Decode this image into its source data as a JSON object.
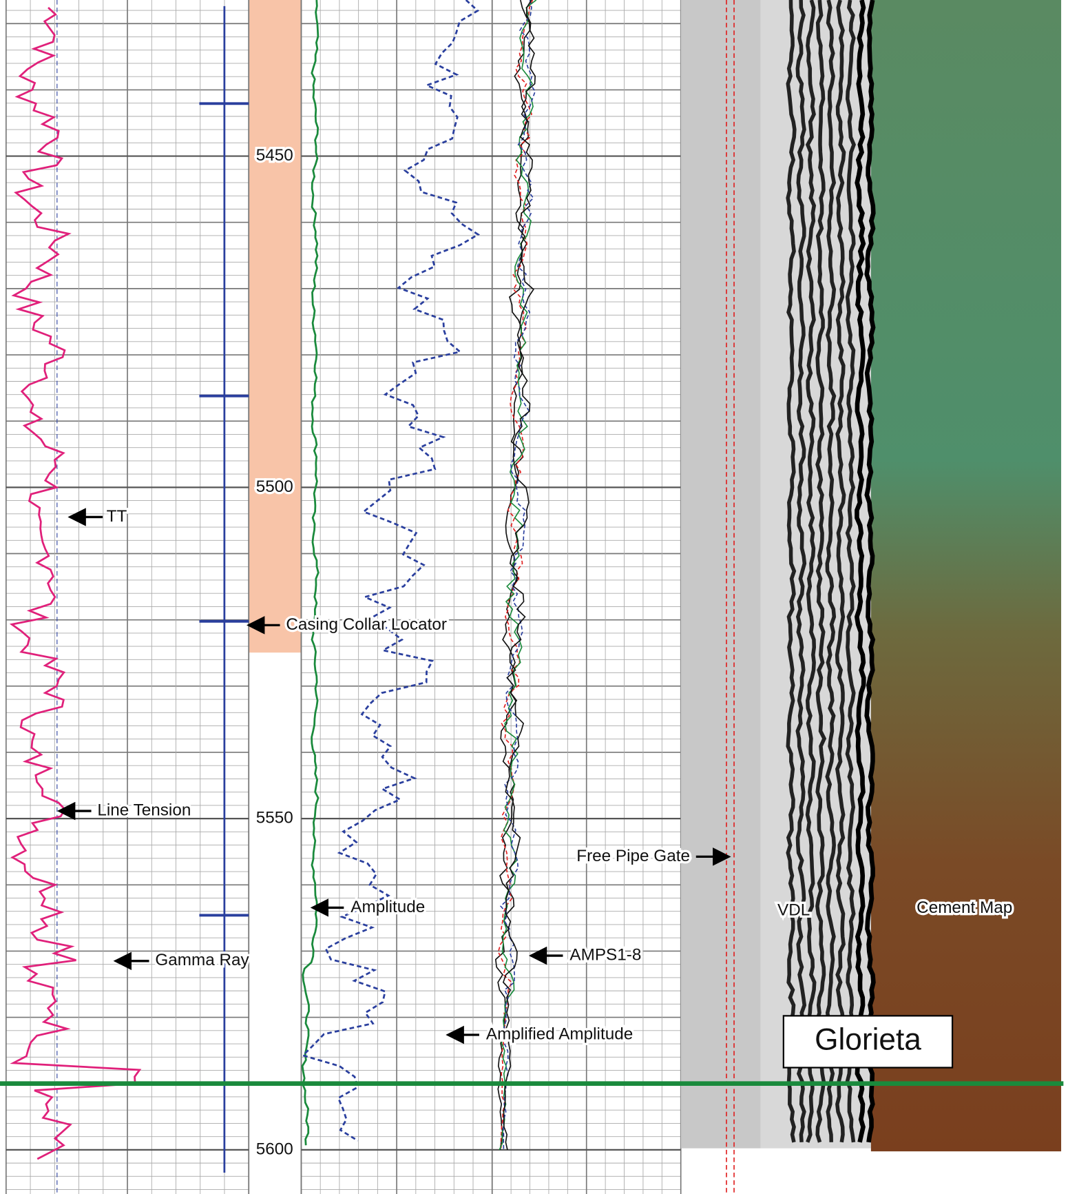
{
  "depth_track": {
    "ticks": [
      5450,
      5500,
      5550,
      5600
    ]
  },
  "annotations": [
    "TT",
    "Casing Collar Locator",
    "Line Tension",
    "Gamma Ray",
    "Amplitude",
    "AMPS1-8",
    "Amplified Amplitude",
    "Free Pipe Gate",
    "VDL",
    "Cement Map"
  ],
  "formation": "Glorieta"
}
